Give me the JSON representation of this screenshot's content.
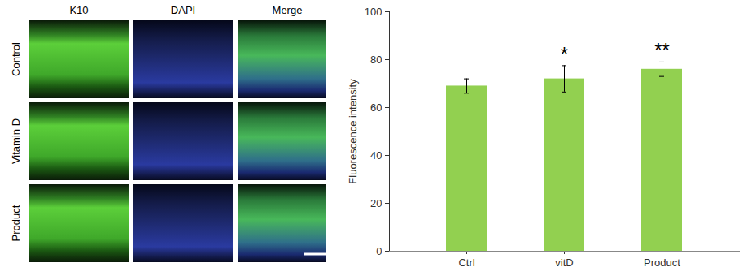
{
  "chart_data": {
    "type": "bar",
    "categories": [
      "Ctrl",
      "vitD",
      "Product"
    ],
    "values": [
      69,
      72,
      76
    ],
    "errors": [
      3,
      5.5,
      3
    ],
    "color": "#92d050",
    "y_label": "Fluorescence intensity",
    "ylim": [
      0,
      100
    ],
    "yticks": [
      0,
      20,
      40,
      60,
      80,
      100
    ],
    "grid": false,
    "annotations": [
      {
        "category": "vitD",
        "text": "*"
      },
      {
        "category": "Product",
        "text": "**"
      }
    ]
  },
  "image_panel": {
    "columns": [
      "K10",
      "DAPI",
      "Merge"
    ],
    "rows": [
      "Control",
      "Vitamin D",
      "Product"
    ]
  }
}
